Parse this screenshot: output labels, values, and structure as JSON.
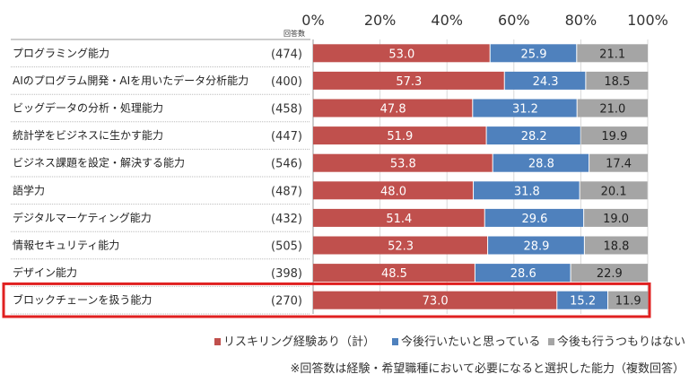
{
  "chart_data": {
    "type": "bar",
    "orientation": "horizontal",
    "stacked": true,
    "count_header": "回答数",
    "categories": [
      "プログラミング能力",
      "AIのプログラム開発・AIを用いたデータ分析能力",
      "ビッグデータの分析・処理能力",
      "統計学をビジネスに生かす能力",
      "ビジネス課題を設定・解決する能力",
      "語学力",
      "デジタルマーケティング能力",
      "情報セキュリティ能力",
      "デザイン能力",
      "ブロックチェーンを扱う能力"
    ],
    "counts": [
      "(474)",
      "(400)",
      "(458)",
      "(447)",
      "(546)",
      "(487)",
      "(432)",
      "(505)",
      "(398)",
      "(270)"
    ],
    "series": [
      {
        "name": "リスキリング経験あり（計）",
        "color": "#c0504d",
        "label_color": "#ffffff",
        "values": [
          53.0,
          57.3,
          47.8,
          51.9,
          53.8,
          48.0,
          51.4,
          52.3,
          48.5,
          73.0
        ]
      },
      {
        "name": "今後行いたいと思っている",
        "color": "#4f81bd",
        "label_color": "#ffffff",
        "values": [
          25.9,
          24.3,
          31.2,
          28.2,
          28.8,
          31.8,
          29.6,
          28.9,
          28.6,
          15.2
        ]
      },
      {
        "name": "今後も行うつもりはない",
        "color": "#a5a5a5",
        "label_color": "#222222",
        "values": [
          21.1,
          18.5,
          21.0,
          19.9,
          17.4,
          20.1,
          19.0,
          18.8,
          22.9,
          11.9
        ]
      }
    ],
    "xlim": [
      0,
      100
    ],
    "xticks": [
      "0%",
      "20%",
      "40%",
      "60%",
      "80%",
      "100%"
    ],
    "grid": true,
    "legend_position": "bottom",
    "highlighted_category": "ブロックチェーンを扱う能力",
    "highlight_color": "#e02020",
    "note": "※回答数は経験・希望職種において必要になると選択した能力（複数回答）"
  }
}
